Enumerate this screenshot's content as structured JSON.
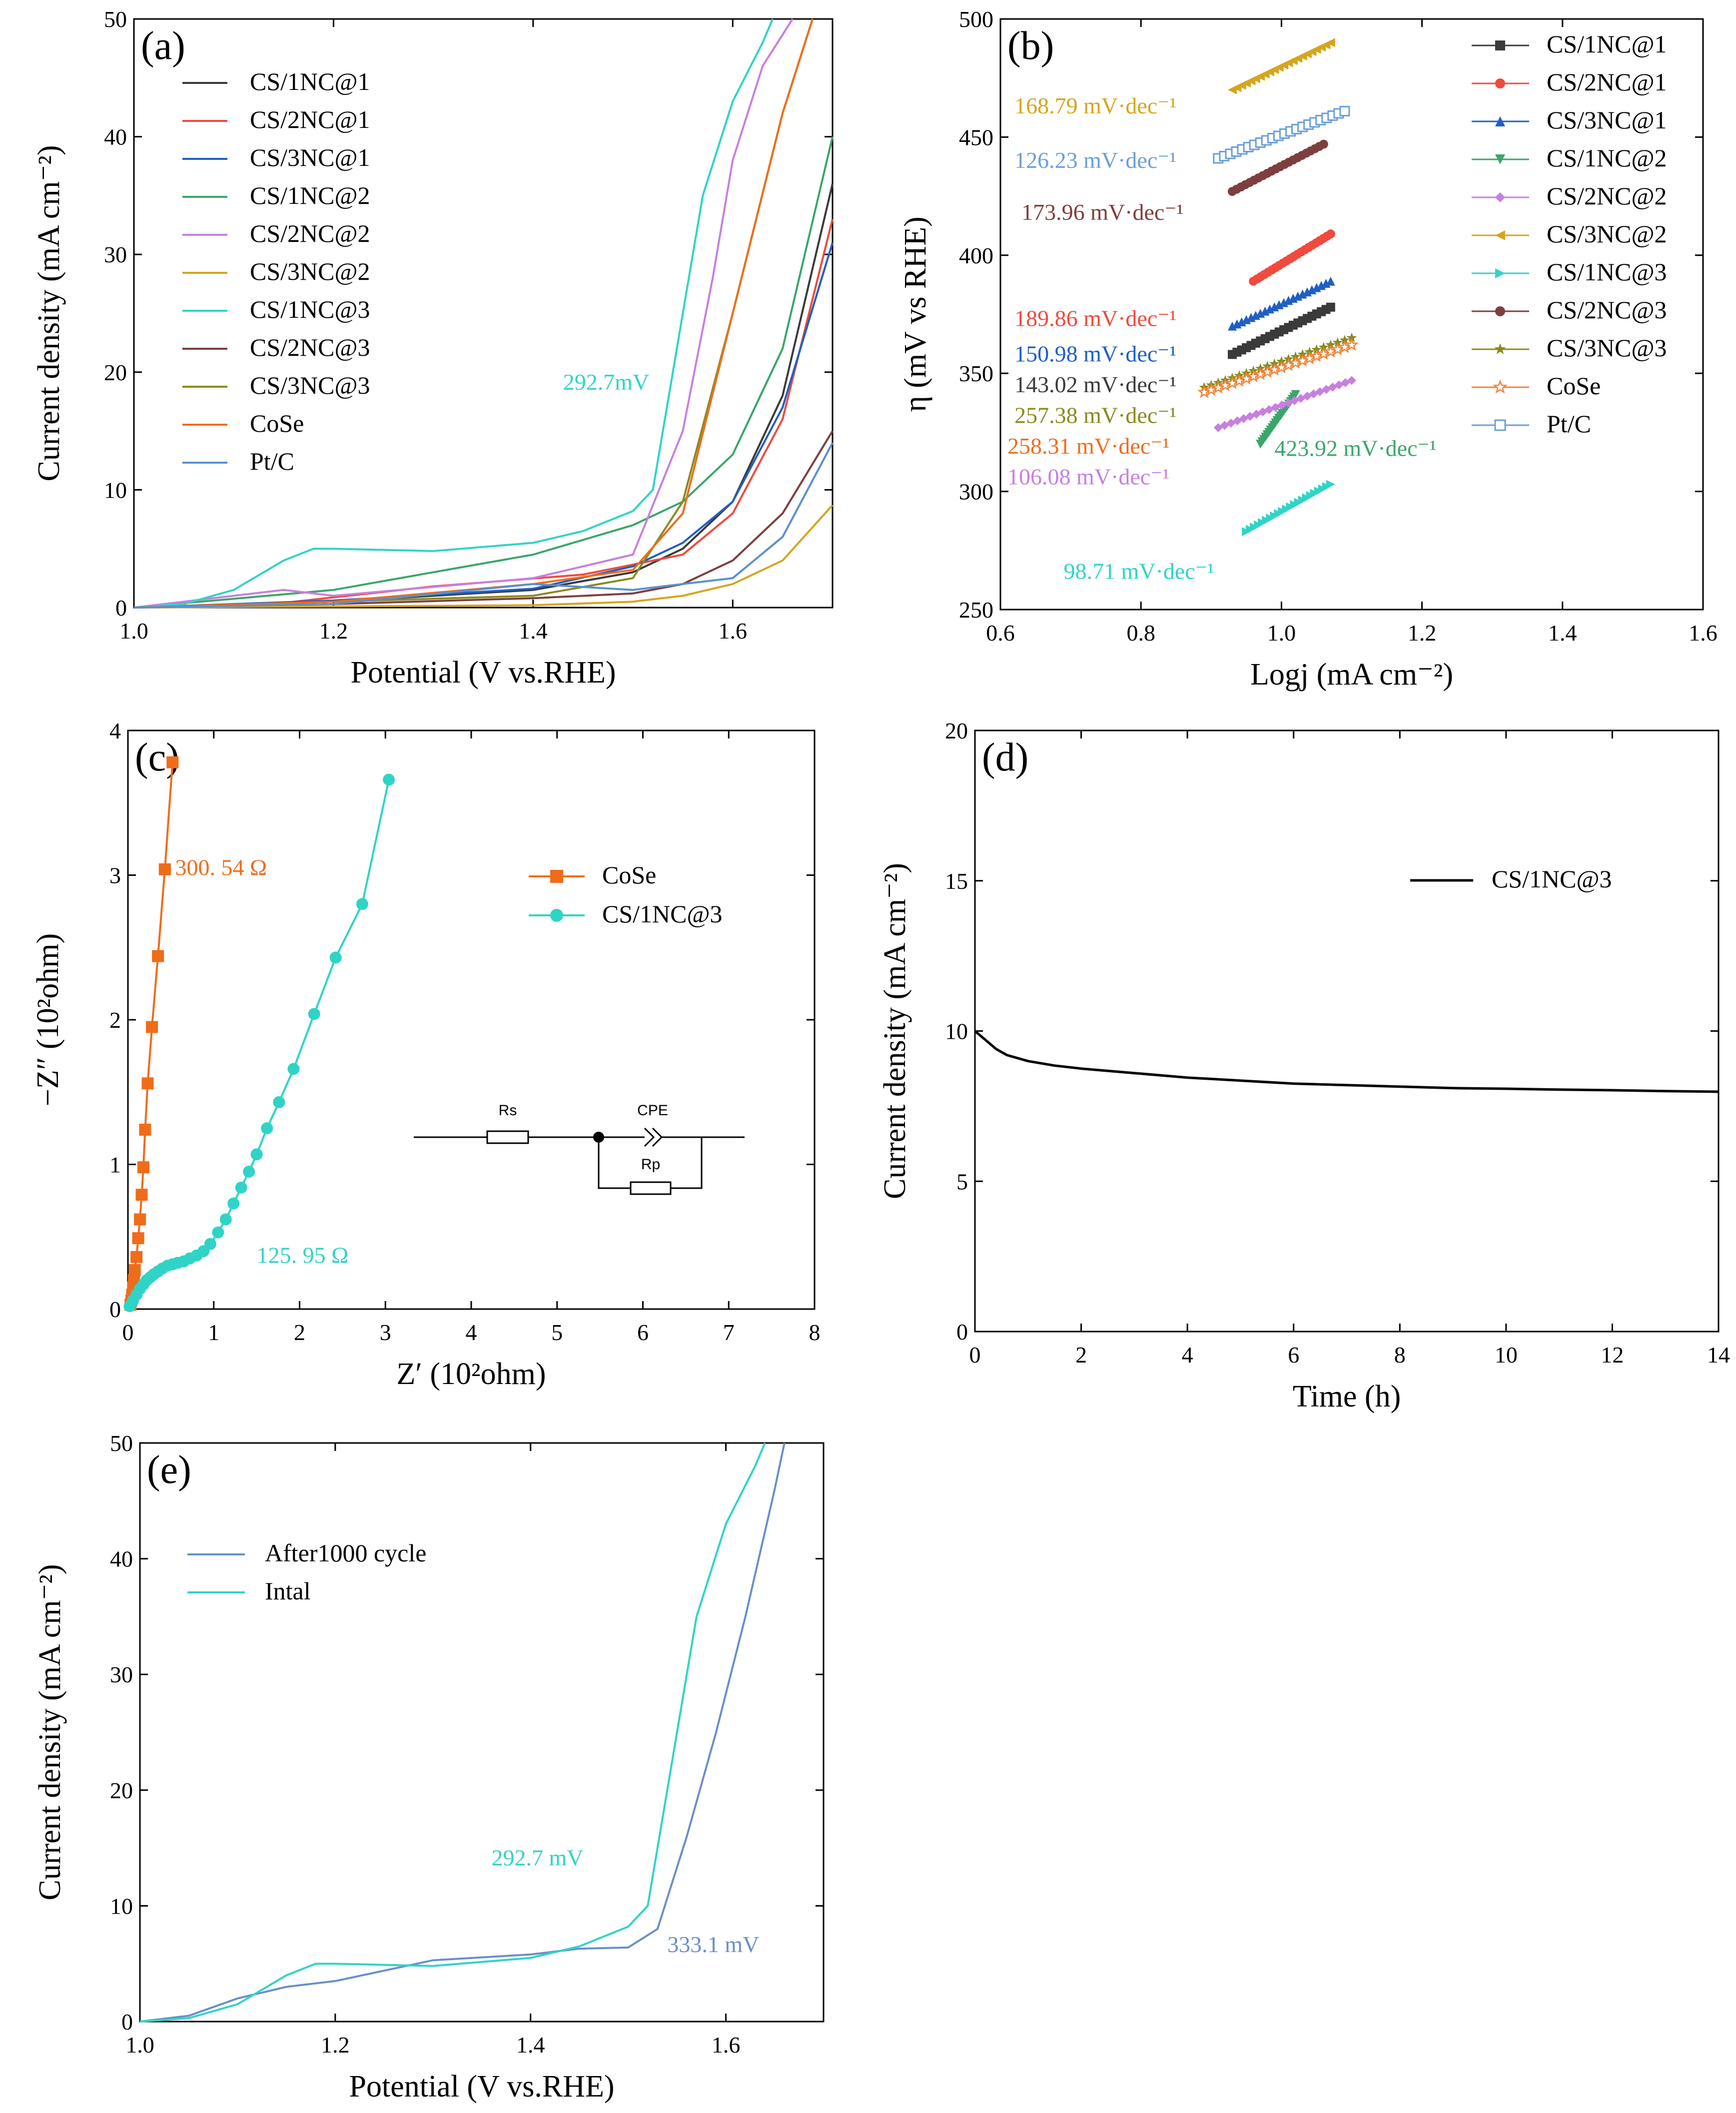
{
  "chart_data": [
    {
      "id": "a",
      "type": "line",
      "panel_label": "(a)",
      "xlabel": "Potential (V vs.RHE)",
      "ylabel": "Current density (mA cm⁻²)",
      "xlim": [
        1.0,
        1.7
      ],
      "ylim": [
        0,
        50
      ],
      "xticks": [
        "1.0",
        "1.2",
        "1.4",
        "1.6"
      ],
      "xtick_values": [
        1.0,
        1.2,
        1.4,
        1.6
      ],
      "yticks": [
        "0",
        "10",
        "20",
        "30",
        "40",
        "50"
      ],
      "ytick_values": [
        0,
        10,
        20,
        30,
        40,
        50
      ],
      "legend_position": "top-left",
      "series": [
        {
          "name": "CS/1NC@1",
          "color": "#3a3a3a",
          "x": [
            1.0,
            1.2,
            1.4,
            1.5,
            1.55,
            1.6,
            1.65,
            1.7
          ],
          "y": [
            0,
            0.5,
            1.5,
            3.0,
            5.0,
            9.0,
            18,
            36
          ]
        },
        {
          "name": "CS/2NC@1",
          "color": "#f04a3c",
          "x": [
            1.0,
            1.15,
            1.3,
            1.45,
            1.55,
            1.6,
            1.65,
            1.7
          ],
          "y": [
            0,
            0.4,
            1.8,
            2.8,
            4.5,
            8.0,
            16,
            33
          ]
        },
        {
          "name": "CS/3NC@1",
          "color": "#1f5fc4",
          "x": [
            1.0,
            1.2,
            1.4,
            1.5,
            1.55,
            1.6,
            1.65,
            1.7
          ],
          "y": [
            0,
            0.6,
            1.6,
            3.5,
            5.5,
            9.0,
            17,
            31
          ]
        },
        {
          "name": "CS/1NC@2",
          "color": "#3aa66a",
          "x": [
            1.0,
            1.2,
            1.3,
            1.4,
            1.5,
            1.55,
            1.6,
            1.65,
            1.7
          ],
          "y": [
            0,
            1.5,
            3.0,
            4.5,
            7.0,
            9.0,
            13,
            22,
            40
          ]
        },
        {
          "name": "CS/2NC@2",
          "color": "#c87fe0",
          "x": [
            1.0,
            1.1,
            1.15,
            1.2,
            1.4,
            1.5,
            1.55,
            1.58,
            1.6,
            1.63,
            1.66
          ],
          "y": [
            0,
            1.0,
            1.5,
            1.0,
            2.5,
            4.5,
            15,
            28,
            38,
            46,
            50
          ]
        },
        {
          "name": "CS/3NC@2",
          "color": "#d6a51c",
          "x": [
            1.0,
            1.2,
            1.4,
            1.5,
            1.55,
            1.6,
            1.65,
            1.7
          ],
          "y": [
            0,
            0.1,
            0.2,
            0.5,
            1.0,
            2.0,
            4.0,
            8.7
          ]
        },
        {
          "name": "CS/1NC@3",
          "color": "#2fd4c6",
          "x": [
            1.0,
            1.05,
            1.1,
            1.15,
            1.18,
            1.2,
            1.3,
            1.4,
            1.45,
            1.5,
            1.52,
            1.54,
            1.57,
            1.6,
            1.63,
            1.64
          ],
          "y": [
            0,
            0.3,
            1.5,
            4.0,
            5.0,
            5.0,
            4.8,
            5.5,
            6.5,
            8.2,
            10,
            20,
            35,
            43,
            48,
            50
          ]
        },
        {
          "name": "CS/2NC@3",
          "color": "#7e3e3e",
          "x": [
            1.0,
            1.2,
            1.4,
            1.5,
            1.55,
            1.6,
            1.65,
            1.7
          ],
          "y": [
            0,
            0.3,
            0.8,
            1.2,
            2.0,
            4.0,
            8.0,
            15
          ]
        },
        {
          "name": "CS/3NC@3",
          "color": "#8a8a1e",
          "x": [
            1.0,
            1.2,
            1.4,
            1.5,
            1.55,
            1.6,
            1.65,
            1.68
          ],
          "y": [
            0,
            0.5,
            1.0,
            2.5,
            9.0,
            25,
            42,
            50
          ]
        },
        {
          "name": "CoSe",
          "color": "#f06c1a",
          "x": [
            1.0,
            1.2,
            1.4,
            1.5,
            1.55,
            1.6,
            1.65,
            1.68
          ],
          "y": [
            0,
            0.5,
            2.0,
            3.2,
            8.0,
            25,
            42,
            50
          ]
        },
        {
          "name": "Pt/C",
          "color": "#5a8fd0",
          "x": [
            1.0,
            1.2,
            1.4,
            1.5,
            1.6,
            1.65,
            1.7
          ],
          "y": [
            0,
            0.3,
            2.0,
            1.5,
            2.5,
            6.0,
            14
          ]
        }
      ],
      "annotations": [
        {
          "text": "292.7mV",
          "color": "#2fd4c6",
          "x": 1.43,
          "y": 18.5
        }
      ]
    },
    {
      "id": "b",
      "type": "scatter",
      "panel_label": "(b)",
      "xlabel": "Logj (mA  cm⁻²)",
      "ylabel": "η (mV vs RHE)",
      "xlim": [
        0.6,
        1.6
      ],
      "ylim": [
        250,
        500
      ],
      "xticks": [
        "0.6",
        "0.8",
        "1.0",
        "1.2",
        "1.4",
        "1.6"
      ],
      "xtick_values": [
        0.6,
        0.8,
        1.0,
        1.2,
        1.4,
        1.6
      ],
      "yticks": [
        "250",
        "300",
        "350",
        "400",
        "450",
        "500"
      ],
      "ytick_values": [
        250,
        300,
        350,
        400,
        450,
        500
      ],
      "legend_position": "right",
      "series": [
        {
          "name": "CS/1NC@1",
          "color": "#3a3a3a",
          "marker": "square",
          "x0": 0.93,
          "x1": 1.07,
          "y0": 358,
          "y1": 378
        },
        {
          "name": "CS/2NC@1",
          "color": "#f04a3c",
          "marker": "circle",
          "x0": 0.96,
          "x1": 1.07,
          "y0": 389,
          "y1": 409
        },
        {
          "name": "CS/3NC@1",
          "color": "#1f5fc4",
          "marker": "triangle-up",
          "x0": 0.93,
          "x1": 1.07,
          "y0": 370,
          "y1": 389
        },
        {
          "name": "CS/1NC@2",
          "color": "#3aa66a",
          "marker": "triangle-down",
          "x0": 0.97,
          "x1": 1.02,
          "y0": 320,
          "y1": 341
        },
        {
          "name": "CS/2NC@2",
          "color": "#c87fe0",
          "marker": "diamond",
          "x0": 0.91,
          "x1": 1.1,
          "y0": 327,
          "y1": 347
        },
        {
          "name": "CS/3NC@2",
          "color": "#d6a51c",
          "marker": "triangle-left",
          "x0": 0.93,
          "x1": 1.07,
          "y0": 470,
          "y1": 490
        },
        {
          "name": "CS/1NC@3",
          "color": "#2fd4c6",
          "marker": "triangle-right",
          "x0": 0.95,
          "x1": 1.07,
          "y0": 283,
          "y1": 303
        },
        {
          "name": "CS/2NC@3",
          "color": "#7e3e3e",
          "marker": "circle",
          "x0": 0.93,
          "x1": 1.06,
          "y0": 427,
          "y1": 447
        },
        {
          "name": "CS/3NC@3",
          "color": "#8a8a1e",
          "marker": "star",
          "x0": 0.89,
          "x1": 1.1,
          "y0": 344,
          "y1": 365
        },
        {
          "name": "CoSe",
          "color": "#f0843a",
          "marker": "open-star",
          "x0": 0.89,
          "x1": 1.1,
          "y0": 342,
          "y1": 362
        },
        {
          "name": "Pt/C",
          "color": "#6a9fd8",
          "marker": "open-square",
          "x0": 0.91,
          "x1": 1.09,
          "y0": 441,
          "y1": 461
        }
      ],
      "annotations": [
        {
          "text": "168.79 mV·dec⁻¹",
          "color": "#d6a51c",
          "x": 0.62,
          "y": 460
        },
        {
          "text": "126.23 mV·dec⁻¹",
          "color": "#6a9fd8",
          "x": 0.62,
          "y": 437
        },
        {
          "text": "173.96  mV·dec⁻¹",
          "color": "#7e3e3e",
          "x": 0.63,
          "y": 415
        },
        {
          "text": "189.86 mV·dec⁻¹",
          "color": "#f04a3c",
          "x": 0.62,
          "y": 370
        },
        {
          "text": "150.98 mV·dec⁻¹",
          "color": "#1f5fc4",
          "x": 0.62,
          "y": 355
        },
        {
          "text": "143.02 mV·dec⁻¹",
          "color": "#3a3a3a",
          "x": 0.62,
          "y": 342
        },
        {
          "text": "257.38 mV·dec⁻¹",
          "color": "#8a8a1e",
          "x": 0.62,
          "y": 329
        },
        {
          "text": "258.31 mV·dec⁻¹",
          "color": "#f06c1a",
          "x": 0.61,
          "y": 316
        },
        {
          "text": "106.08 mV·dec⁻¹",
          "color": "#c87fe0",
          "x": 0.61,
          "y": 303
        },
        {
          "text": "423.92 mV·dec⁻¹",
          "color": "#3aa66a",
          "x": 0.99,
          "y": 315
        },
        {
          "text": "98.71 mV·dec⁻¹",
          "color": "#2fd4c6",
          "x": 0.69,
          "y": 263
        }
      ]
    },
    {
      "id": "c",
      "type": "scatter",
      "panel_label": "(c)",
      "xlabel": "Z′ (10²ohm)",
      "ylabel": "−Z″ (10²ohm)",
      "xlim": [
        0,
        8
      ],
      "ylim": [
        0,
        4
      ],
      "xticks": [
        "0",
        "1",
        "2",
        "3",
        "4",
        "5",
        "6",
        "7",
        "8"
      ],
      "xtick_values": [
        0,
        1,
        2,
        3,
        4,
        5,
        6,
        7,
        8
      ],
      "yticks": [
        "0",
        "1",
        "2",
        "3",
        "4"
      ],
      "ytick_values": [
        0,
        1,
        2,
        3,
        4
      ],
      "legend_position": "upper-center",
      "series": [
        {
          "name": "CoSe",
          "color": "#f06c1a",
          "marker": "square",
          "x": [
            0.03,
            0.04,
            0.05,
            0.06,
            0.07,
            0.08,
            0.1,
            0.12,
            0.14,
            0.16,
            0.18,
            0.2,
            0.23,
            0.28,
            0.35,
            0.43,
            0.52
          ],
          "y": [
            0.03,
            0.06,
            0.1,
            0.15,
            0.2,
            0.27,
            0.36,
            0.49,
            0.62,
            0.79,
            0.98,
            1.24,
            1.56,
            1.95,
            2.44,
            3.04,
            3.78
          ]
        },
        {
          "name": "CS/1NC@3",
          "color": "#2fd4c6",
          "marker": "circle",
          "x": [
            0.02,
            0.06,
            0.1,
            0.14,
            0.18,
            0.22,
            0.26,
            0.3,
            0.35,
            0.4,
            0.46,
            0.52,
            0.58,
            0.65,
            0.72,
            0.8,
            0.88,
            0.96,
            1.05,
            1.14,
            1.23,
            1.32,
            1.41,
            1.5,
            1.62,
            1.76,
            1.93,
            2.17,
            2.42,
            2.73,
            3.04
          ],
          "y": [
            0.02,
            0.06,
            0.1,
            0.14,
            0.17,
            0.2,
            0.22,
            0.24,
            0.26,
            0.28,
            0.3,
            0.31,
            0.32,
            0.33,
            0.35,
            0.37,
            0.4,
            0.45,
            0.53,
            0.62,
            0.73,
            0.84,
            0.95,
            1.07,
            1.25,
            1.43,
            1.66,
            2.04,
            2.43,
            2.8,
            3.66
          ]
        }
      ],
      "annotations": [
        {
          "text": "300. 54 Ω",
          "color": "#f06c1a",
          "x": 0.55,
          "y": 3.0
        },
        {
          "text": "125. 95 Ω",
          "color": "#2fd4c6",
          "x": 1.5,
          "y": 0.32
        }
      ],
      "circuit": {
        "labels": [
          "Rs",
          "CPE",
          "Rp"
        ]
      }
    },
    {
      "id": "d",
      "type": "line",
      "panel_label": "(d)",
      "xlabel": "Time (h)",
      "ylabel": "Current density (mA cm⁻²)",
      "xlim": [
        0,
        14
      ],
      "ylim": [
        0,
        20
      ],
      "xticks": [
        "0",
        "2",
        "4",
        "6",
        "8",
        "10",
        "12",
        "14"
      ],
      "xtick_values": [
        0,
        2,
        4,
        6,
        8,
        10,
        12,
        14
      ],
      "yticks": [
        "0",
        "5",
        "10",
        "15",
        "20"
      ],
      "ytick_values": [
        0,
        5,
        10,
        15,
        20
      ],
      "legend_position": "top-right",
      "series": [
        {
          "name": "CS/1NC@3",
          "color": "#000000",
          "x": [
            0,
            0.2,
            0.4,
            0.6,
            1.0,
            1.5,
            2,
            3,
            4,
            5,
            6,
            7,
            8,
            9,
            10,
            11,
            12,
            13,
            14
          ],
          "y": [
            10.0,
            9.7,
            9.4,
            9.2,
            9.0,
            8.85,
            8.75,
            8.6,
            8.45,
            8.35,
            8.25,
            8.2,
            8.15,
            8.1,
            8.08,
            8.05,
            8.03,
            8.0,
            7.98
          ]
        }
      ]
    },
    {
      "id": "e",
      "type": "line",
      "panel_label": "(e)",
      "xlabel": "Potential (V vs.RHE)",
      "ylabel": "Current density (mA cm⁻²)",
      "xlim": [
        1.0,
        1.7
      ],
      "ylim": [
        0,
        50
      ],
      "xticks": [
        "1.0",
        "1.2",
        "1.4",
        "1.6"
      ],
      "xtick_values": [
        1.0,
        1.2,
        1.4,
        1.6
      ],
      "yticks": [
        "0",
        "10",
        "20",
        "30",
        "40",
        "50"
      ],
      "ytick_values": [
        0,
        10,
        20,
        30,
        40,
        50
      ],
      "legend_position": "top-left",
      "series": [
        {
          "name": "After1000 cycle",
          "color": "#6a8fc8",
          "x": [
            1.0,
            1.05,
            1.1,
            1.15,
            1.2,
            1.3,
            1.4,
            1.45,
            1.5,
            1.53,
            1.56,
            1.59,
            1.62,
            1.65,
            1.66
          ],
          "y": [
            0,
            0.5,
            2.0,
            3.0,
            3.5,
            5.3,
            5.8,
            6.3,
            6.4,
            8.0,
            16,
            25,
            35,
            46,
            50
          ]
        },
        {
          "name": "Intal",
          "color": "#2fd4c6",
          "x": [
            1.0,
            1.05,
            1.1,
            1.15,
            1.18,
            1.2,
            1.3,
            1.4,
            1.45,
            1.5,
            1.52,
            1.54,
            1.57,
            1.6,
            1.63,
            1.64
          ],
          "y": [
            0,
            0.3,
            1.5,
            4.0,
            5.0,
            5.0,
            4.8,
            5.5,
            6.5,
            8.2,
            10,
            20,
            35,
            43,
            48,
            50
          ]
        }
      ],
      "annotations": [
        {
          "text": "292.7 mV",
          "color": "#2fd4c6",
          "x": 1.36,
          "y": 13.5
        },
        {
          "text": "333.1 mV",
          "color": "#6a8fc8",
          "x": 1.54,
          "y": 6.0
        }
      ]
    }
  ]
}
